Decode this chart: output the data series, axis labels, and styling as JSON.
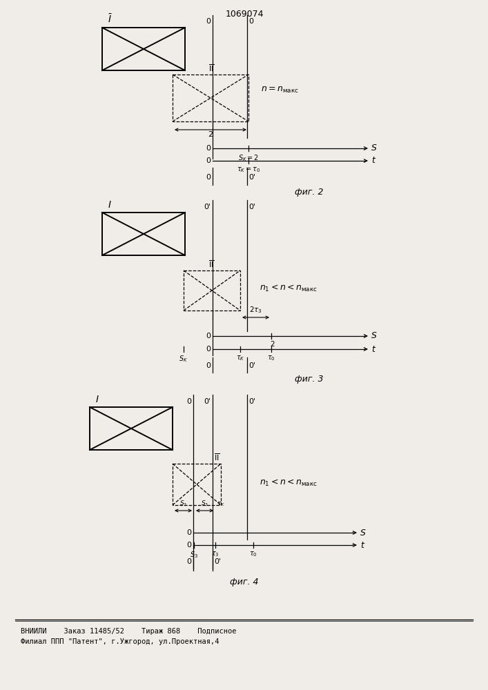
{
  "title": "1069074",
  "fig2_label": "фиг. 2",
  "fig3_label": "фиг. 3",
  "fig4_label": "фиг. 4",
  "bg_color": "#f0ede8",
  "footer_line1": "ВНИИЛИ    Заказ 11485/52    Тираж 868    Подписное",
  "footer_line2": "Филиал ППП \"Патент\", г.Ужгород, ул.Проектная,4"
}
